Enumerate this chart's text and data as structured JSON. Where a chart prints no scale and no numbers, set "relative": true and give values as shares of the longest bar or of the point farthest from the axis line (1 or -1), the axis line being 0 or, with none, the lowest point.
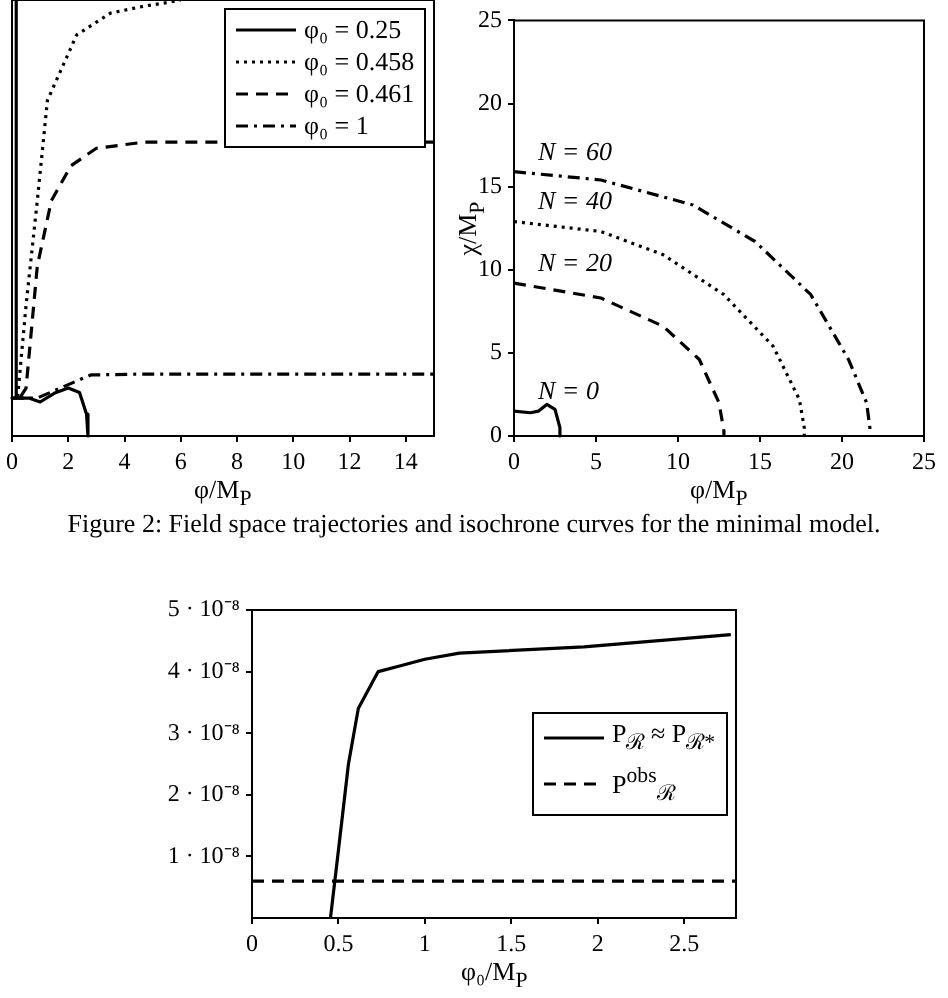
{
  "chart_data": [
    {
      "type": "line",
      "relative": true,
      "xlabel": "φ/M$_{P}$",
      "xlim": [
        0,
        15
      ],
      "xticks": [
        0,
        2,
        4,
        6,
        8,
        10,
        12,
        14
      ],
      "tick_labels": "x",
      "legend": "top right",
      "annotations": [
        "Figure 2: Field space trajectories and isochrone curves for the minimal model."
      ],
      "series": [
        {
          "name": "φ₀ = 0.25",
          "color": "#000000",
          "line_style": "solid",
          "x": [
            0.15,
            0.15,
            0,
            0.6,
            1.0,
            1.5,
            2.0,
            2.4,
            2.65,
            2.7
          ],
          "values": [
            1,
            0.087,
            0.087,
            0.087,
            0.078,
            0.098,
            0.11,
            0.1,
            0.05,
            0
          ]
        },
        {
          "name": "φ₀ = 0.458",
          "color": "#000000",
          "line_style": "dotted",
          "x": [
            0.2,
            0.5,
            0.9,
            1.26,
            2.3,
            3.5,
            4.7,
            5.6,
            6
          ],
          "values": [
            0.09,
            0.3,
            0.54,
            0.77,
            0.92,
            0.97,
            0.986,
            0.995,
            1
          ]
        },
        {
          "name": "φ₀ = 0.461",
          "color": "#000000",
          "line_style": "dashed",
          "x": [
            0.3,
            0.5,
            0.9,
            1.4,
            2.1,
            3,
            4.7,
            15
          ],
          "values": [
            0.09,
            0.11,
            0.39,
            0.54,
            0.62,
            0.66,
            0.674,
            0.674
          ]
        },
        {
          "name": "φ₀ = 1",
          "color": "#000000",
          "line_style": "dashdot",
          "x": [
            0,
            0.9,
            1.9,
            2.8,
            4.7,
            15
          ],
          "values": [
            0.087,
            0.087,
            0.115,
            0.14,
            0.142,
            0.142
          ]
        }
      ]
    },
    {
      "type": "line",
      "xlabel": "φ/M$_{P}$",
      "ylabel": "χ/M$_{P}$",
      "xlim": [
        0,
        25
      ],
      "xticks": [
        0,
        5,
        10,
        15,
        20,
        25
      ],
      "ylim": [
        0,
        25
      ],
      "yticks": [
        0,
        5,
        10,
        15,
        20,
        25
      ],
      "series": [
        {
          "name": "N = 0",
          "color": "#000000",
          "line_style": "solid",
          "x": [
            0,
            1,
            1.5,
            2,
            2.5,
            2.8,
            2.8
          ],
          "values": [
            1.5,
            1.4,
            1.5,
            1.9,
            1.6,
            0.5,
            0
          ]
        },
        {
          "name": "N = 20",
          "color": "#000000",
          "line_style": "dashed",
          "x": [
            0,
            5.3,
            9.1,
            11.3,
            12.5,
            12.8,
            12.8
          ],
          "values": [
            9.2,
            8.3,
            6.6,
            4.6,
            2.0,
            0.3,
            0
          ]
        },
        {
          "name": "N = 40",
          "color": "#000000",
          "line_style": "dotted",
          "x": [
            0,
            5.3,
            9.1,
            12.8,
            15.8,
            17.4,
            17.7,
            17.7
          ],
          "values": [
            12.9,
            12.3,
            10.9,
            8.5,
            5.4,
            2.2,
            0.5,
            0
          ]
        },
        {
          "name": "N = 60",
          "color": "#000000",
          "line_style": "dashdot",
          "x": [
            0,
            5.3,
            10.9,
            14.7,
            18.1,
            20.4,
            21.5,
            21.7,
            21.7
          ],
          "values": [
            15.9,
            15.4,
            13.9,
            11.7,
            8.5,
            4.6,
            2.0,
            0.5,
            0
          ]
        }
      ]
    },
    {
      "type": "line",
      "xlabel": "φ₀/M$_{P}$",
      "xlim": [
        0,
        2.8
      ],
      "xticks": [
        0,
        0.5,
        1,
        1.5,
        2,
        2.5
      ],
      "ylim": [
        0,
        5e-08
      ],
      "yticks": [
        {
          "value": 1e-08,
          "label": "1 · 10⁻⁸"
        },
        {
          "value": 2e-08,
          "label": "2 · 10⁻⁸"
        },
        {
          "value": 3e-08,
          "label": "3 · 10⁻⁸"
        },
        {
          "value": 4e-08,
          "label": "4 · 10⁻⁸"
        },
        {
          "value": 5e-08,
          "label": "5 · 10⁻⁸"
        }
      ],
      "legend": "right",
      "series": [
        {
          "name": "P$_{ℛ}$ ≈ P$_{ℛ*}$",
          "color": "#000000",
          "line_style": "solid",
          "x": [
            0.454,
            0.5,
            0.558,
            0.615,
            0.73,
            0.865,
            1.0,
            1.2,
            1.92,
            2.77
          ],
          "values": [
            0,
            1.1e-08,
            2.5e-08,
            3.4e-08,
            4e-08,
            4.1e-08,
            4.2e-08,
            4.3e-08,
            4.4e-08,
            4.6e-08
          ]
        },
        {
          "name": "P$^{obs}$$_{ℛ}$",
          "color": "#000000",
          "line_style": "dashed",
          "x": [
            0,
            2.8
          ],
          "values": [
            6e-09,
            6e-09
          ]
        }
      ]
    }
  ]
}
